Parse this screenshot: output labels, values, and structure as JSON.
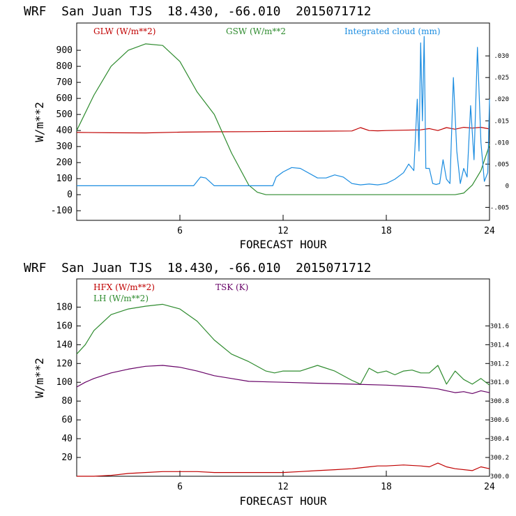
{
  "chart_data": [
    {
      "type": "line",
      "title": "WRF  San Juan TJS  18.430, -66.010  2015071712",
      "xlabel": "FORECAST HOUR",
      "ylabel": "W/m**2",
      "xlim": [
        0,
        24
      ],
      "ylim": [
        -160,
        1070
      ],
      "y2lim": [
        -0.008,
        0.0376
      ],
      "x_ticks": [
        6,
        12,
        18,
        24
      ],
      "x_tick_labels": [
        "6",
        "12",
        "18",
        "24"
      ],
      "y_ticks": [
        -100,
        0,
        100,
        200,
        300,
        400,
        500,
        600,
        700,
        800,
        900
      ],
      "y_tick_labels": [
        "-100",
        "0",
        "100",
        "200",
        "300",
        "400",
        "500",
        "600",
        "700",
        "800",
        "900"
      ],
      "y2_ticks": [
        -0.005,
        0,
        0.005,
        0.01,
        0.015,
        0.02,
        0.025,
        0.03
      ],
      "y2_tick_labels": [
        "-.005",
        "0",
        ".005",
        ".010",
        ".015",
        ".020",
        ".025",
        ".030"
      ],
      "grid": false,
      "legend_position": "top",
      "series": [
        {
          "name": "GLW (W/m**2)",
          "color": "#c00000",
          "axis": "left",
          "x": [
            0,
            2,
            4,
            6,
            8,
            10,
            12,
            14,
            16,
            16.5,
            17,
            17.5,
            18,
            19,
            20,
            20.5,
            21,
            21.5,
            22,
            22.5,
            23,
            23.5,
            24
          ],
          "y": [
            388,
            386,
            385,
            390,
            392,
            393,
            395,
            396,
            397,
            418,
            400,
            398,
            400,
            402,
            404,
            412,
            400,
            418,
            408,
            420,
            415,
            420,
            410
          ]
        },
        {
          "name": "GSW (W/m**2",
          "color": "#2e8b2e",
          "axis": "left",
          "x": [
            0,
            1,
            2,
            3,
            4,
            5,
            6,
            7,
            8,
            9,
            10,
            10.5,
            11,
            12,
            18,
            20,
            22,
            22.5,
            23,
            23.5,
            24
          ],
          "y": [
            400,
            620,
            800,
            900,
            940,
            930,
            830,
            640,
            500,
            260,
            60,
            15,
            0,
            0,
            0,
            0,
            0,
            10,
            60,
            150,
            310
          ]
        },
        {
          "name": "Integrated cloud (mm)",
          "color": "#1a8ce0",
          "axis": "right",
          "x": [
            0,
            5,
            6.8,
            7.2,
            7.5,
            8,
            8.5,
            11,
            11.4,
            11.6,
            12,
            12.5,
            13,
            14,
            14.5,
            15,
            15.5,
            16,
            16.5,
            17,
            17.5,
            18,
            18.5,
            19,
            19.3,
            19.6,
            19.8,
            19.9,
            20,
            20.1,
            20.2,
            20.3,
            20.5,
            20.7,
            20.9,
            21.1,
            21.3,
            21.5,
            21.7,
            21.9,
            22.1,
            22.3,
            22.5,
            22.7,
            22.9,
            23.1,
            23.3,
            23.5,
            23.7,
            23.9,
            24
          ],
          "y": [
            0,
            0,
            0,
            0.002,
            0.0018,
            0,
            0,
            0,
            0,
            0.002,
            0.0032,
            0.0042,
            0.004,
            0.0018,
            0.0018,
            0.0025,
            0.002,
            0.0005,
            0.0002,
            0.0004,
            0.0002,
            0.0005,
            0.0015,
            0.003,
            0.005,
            0.0035,
            0.02,
            0.008,
            0.033,
            0.015,
            0.0345,
            0.004,
            0.004,
            0.0005,
            0.0003,
            0.0005,
            0.006,
            0.0015,
            0.0005,
            0.025,
            0.008,
            0.0005,
            0.004,
            0.002,
            0.0185,
            0.006,
            0.032,
            0.01,
            0.001,
            0.003,
            0.02
          ]
        }
      ]
    },
    {
      "type": "line",
      "title": "WRF  San Juan TJS  18.430, -66.010  2015071712",
      "xlabel": "FORECAST HOUR",
      "ylabel": "W/m**2",
      "xlim": [
        0,
        24
      ],
      "ylim": [
        0,
        210
      ],
      "y2lim": [
        300.0,
        302.1
      ],
      "x_ticks": [
        6,
        12,
        18,
        24
      ],
      "x_tick_labels": [
        "6",
        "12",
        "18",
        "24"
      ],
      "y_ticks": [
        20,
        40,
        60,
        80,
        100,
        120,
        140,
        160,
        180
      ],
      "y_tick_labels": [
        "20",
        "40",
        "60",
        "80",
        "100",
        "120",
        "140",
        "160",
        "180"
      ],
      "y2_ticks": [
        300.0,
        300.2,
        300.4,
        300.6,
        300.8,
        301.0,
        301.2,
        301.4,
        301.6
      ],
      "y2_tick_labels": [
        "300.0",
        "300.2",
        "300.4",
        "300.6",
        "300.8",
        "301.0",
        "301.2",
        "301.4",
        "301.6"
      ],
      "grid": false,
      "legend_position": "top-left",
      "series": [
        {
          "name": "HFX (W/m**2)",
          "color": "#c00000",
          "axis": "left",
          "x": [
            0,
            1,
            2,
            3,
            4,
            5,
            6,
            7,
            8,
            9,
            10,
            11,
            12,
            13,
            14,
            15,
            16,
            17,
            17.5,
            18,
            19,
            20,
            20.5,
            21,
            21.5,
            22,
            23,
            23.5,
            24
          ],
          "y": [
            0,
            0,
            1,
            3,
            4,
            5,
            5,
            5,
            4,
            4,
            4,
            4,
            4,
            5,
            6,
            7,
            8,
            10,
            11,
            11,
            12,
            11,
            10,
            14,
            10,
            8,
            6,
            10,
            8
          ]
        },
        {
          "name": "LH  (W/m**2)",
          "color": "#2e8b2e",
          "axis": "left",
          "x": [
            0,
            0.5,
            1,
            2,
            3,
            4,
            5,
            6,
            7,
            8,
            9,
            10,
            11,
            11.5,
            12,
            13,
            14,
            15,
            16,
            16.5,
            17,
            17.5,
            18,
            18.5,
            19,
            19.5,
            20,
            20.5,
            21,
            21.5,
            22,
            22.5,
            23,
            23.5,
            24
          ],
          "y": [
            130,
            140,
            155,
            172,
            178,
            181,
            183,
            178,
            165,
            145,
            130,
            122,
            112,
            110,
            112,
            112,
            118,
            112,
            102,
            98,
            115,
            110,
            112,
            108,
            112,
            113,
            110,
            110,
            118,
            98,
            112,
            103,
            98,
            104,
            97
          ]
        },
        {
          "name": "TSK (K)",
          "color": "#660066",
          "axis": "right",
          "x": [
            0,
            0.5,
            1,
            2,
            3,
            4,
            5,
            6,
            7,
            8,
            9,
            10,
            12,
            14,
            16,
            18,
            19,
            20,
            20.5,
            21,
            21.5,
            22,
            22.5,
            23,
            23.5,
            24
          ],
          "y": [
            300.95,
            301.0,
            301.04,
            301.1,
            301.14,
            301.17,
            301.18,
            301.16,
            301.12,
            301.07,
            301.04,
            301.01,
            301.0,
            300.99,
            300.98,
            300.97,
            300.96,
            300.95,
            300.94,
            300.93,
            300.91,
            300.89,
            300.9,
            300.88,
            300.91,
            300.89
          ]
        }
      ]
    }
  ]
}
